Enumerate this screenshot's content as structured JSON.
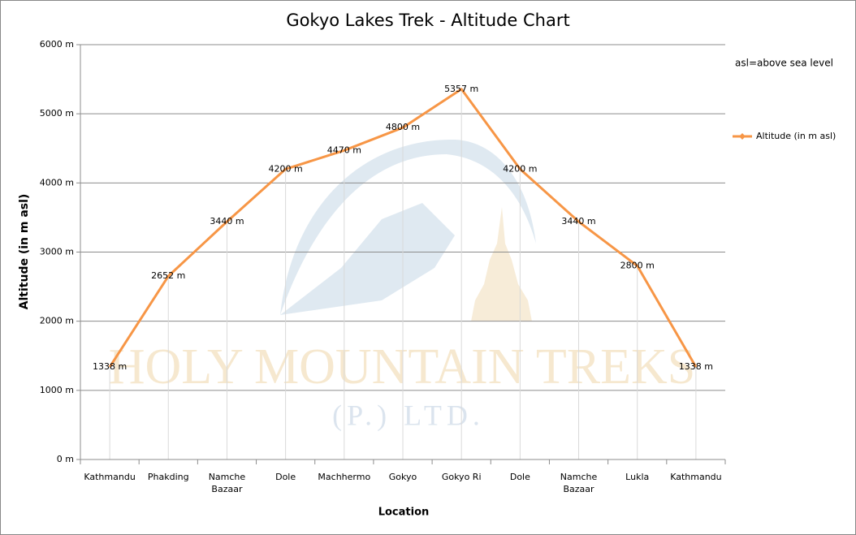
{
  "chart_data": {
    "type": "line",
    "title": "Gokyo Lakes Trek - Altitude Chart",
    "x_label": "Location",
    "y_label": "Altitude (in m asl)",
    "annotation": "asl=above sea level",
    "watermark": [
      "HOLY MOUNTAIN TREKS",
      "(P.) LTD."
    ],
    "categories": [
      "Kathmandu",
      "Phakding",
      "Namche Bazaar",
      "Dole",
      "Machhermo",
      "Gokyo",
      "Gokyo Ri",
      "Dole",
      "Namche Bazaar",
      "Lukla",
      "Kathmandu"
    ],
    "series": [
      {
        "name": "Altitude (in m asl)",
        "color": "#f79646",
        "values": [
          1338,
          2652,
          3440,
          4200,
          4470,
          4800,
          5357,
          4200,
          3440,
          2800,
          1338
        ],
        "value_labels": [
          "1338 m",
          "2652 m",
          "3440 m",
          "4200 m",
          "4470 m",
          "4800 m",
          "5357 m",
          "4200 m",
          "3440 m",
          "2800 m",
          "1338 m"
        ]
      }
    ],
    "ylim": [
      0,
      6000
    ],
    "yticks": [
      {
        "value": 0,
        "label": "0 m"
      },
      {
        "value": 1000,
        "label": "1000 m"
      },
      {
        "value": 2000,
        "label": "2000 m"
      },
      {
        "value": 3000,
        "label": "3000 m"
      },
      {
        "value": 4000,
        "label": "4000 m"
      },
      {
        "value": 5000,
        "label": "5000 m"
      },
      {
        "value": 6000,
        "label": "6000 m"
      }
    ],
    "grid": true,
    "drop_lines": true,
    "legend": "right"
  }
}
